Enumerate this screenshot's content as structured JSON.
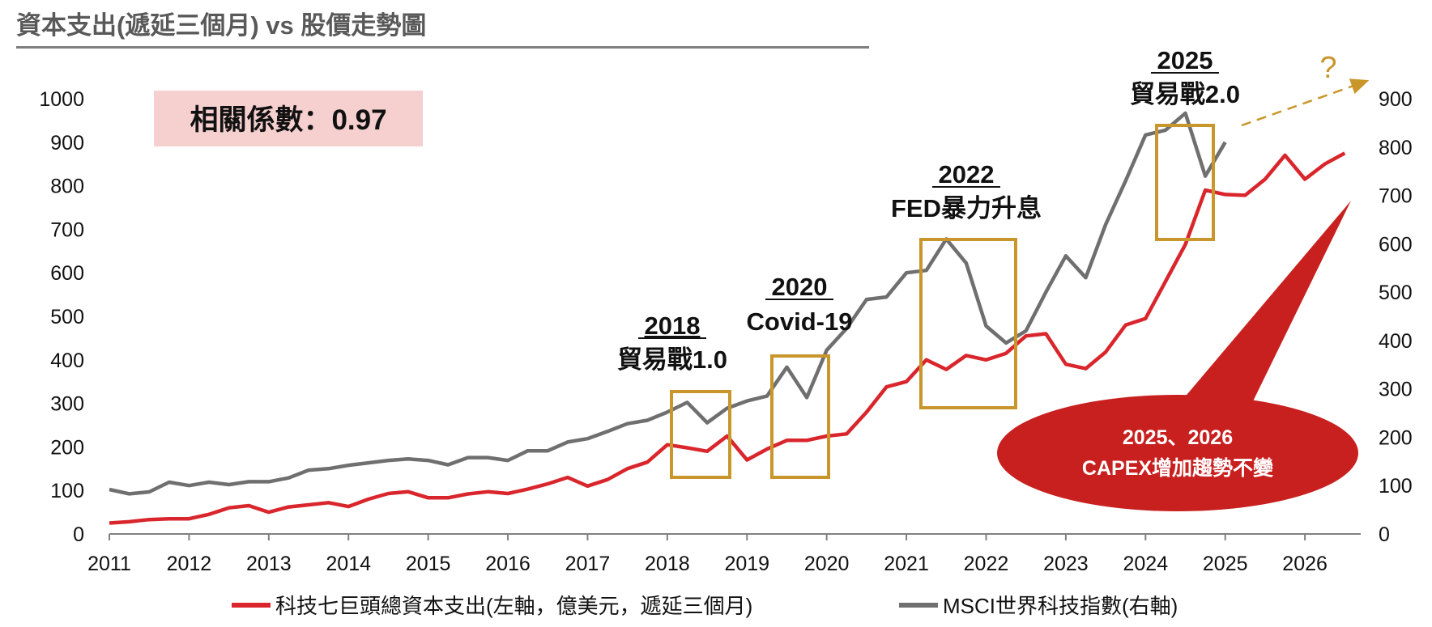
{
  "title": "資本支出(遞延三個月) vs 股價走勢圖",
  "correlation_label": "相關係數：0.97",
  "chart_data": {
    "type": "line",
    "x_ticks": [
      "2011",
      "2012",
      "2013",
      "2014",
      "2015",
      "2016",
      "2017",
      "2018",
      "2019",
      "2020",
      "2021",
      "2022",
      "2023",
      "2024",
      "2025",
      "2026"
    ],
    "left_axis": {
      "ticks": [
        "0",
        "100",
        "200",
        "300",
        "400",
        "500",
        "600",
        "700",
        "800",
        "900",
        "1000"
      ],
      "range": [
        0,
        1000
      ]
    },
    "right_axis": {
      "ticks": [
        "0",
        "100",
        "200",
        "300",
        "400",
        "500",
        "600",
        "700",
        "800",
        "900"
      ],
      "range": [
        0,
        900
      ]
    },
    "xlim": [
      2011.0,
      2026.7
    ],
    "series": [
      {
        "name": "科技七巨頭總資本支出(左軸，億美元，遞延三個月)",
        "axis": "left",
        "color": "#d9262c",
        "x": [
          2011.0,
          2011.25,
          2011.5,
          2011.75,
          2012.0,
          2012.25,
          2012.5,
          2012.75,
          2013.0,
          2013.25,
          2013.5,
          2013.75,
          2014.0,
          2014.25,
          2014.5,
          2014.75,
          2015.0,
          2015.25,
          2015.5,
          2015.75,
          2016.0,
          2016.25,
          2016.5,
          2016.75,
          2017.0,
          2017.25,
          2017.5,
          2017.75,
          2018.0,
          2018.25,
          2018.5,
          2018.75,
          2019.0,
          2019.25,
          2019.5,
          2019.75,
          2020.0,
          2020.25,
          2020.5,
          2020.75,
          2021.0,
          2021.25,
          2021.5,
          2021.75,
          2022.0,
          2022.25,
          2022.5,
          2022.75,
          2023.0,
          2023.25,
          2023.5,
          2023.75,
          2024.0,
          2024.25,
          2024.5,
          2024.75,
          2025.0,
          2025.25,
          2025.5,
          2025.75,
          2026.0,
          2026.25,
          2026.5
        ],
        "values": [
          25,
          28,
          33,
          35,
          35,
          45,
          60,
          65,
          50,
          62,
          67,
          72,
          63,
          80,
          93,
          97,
          83,
          83,
          92,
          97,
          93,
          103,
          115,
          130,
          110,
          125,
          150,
          165,
          205,
          198,
          190,
          225,
          170,
          195,
          215,
          215,
          225,
          230,
          280,
          338,
          350,
          400,
          378,
          410,
          400,
          415,
          455,
          460,
          390,
          380,
          418,
          480,
          495,
          580,
          665,
          790,
          780,
          778,
          815,
          870,
          815,
          850,
          875
        ]
      },
      {
        "name": "MSCI世界科技指數(右軸)",
        "axis": "right",
        "color": "#6f6f6f",
        "x": [
          2011.0,
          2011.25,
          2011.5,
          2011.75,
          2012.0,
          2012.25,
          2012.5,
          2012.75,
          2013.0,
          2013.25,
          2013.5,
          2013.75,
          2014.0,
          2014.25,
          2014.5,
          2014.75,
          2015.0,
          2015.25,
          2015.5,
          2015.75,
          2016.0,
          2016.25,
          2016.5,
          2016.75,
          2017.0,
          2017.25,
          2017.5,
          2017.75,
          2018.0,
          2018.25,
          2018.5,
          2018.75,
          2019.0,
          2019.25,
          2019.5,
          2019.75,
          2020.0,
          2020.25,
          2020.5,
          2020.75,
          2021.0,
          2021.25,
          2021.5,
          2021.75,
          2022.0,
          2022.25,
          2022.5,
          2022.75,
          2023.0,
          2023.25,
          2023.5,
          2023.75,
          2024.0,
          2024.25,
          2024.5,
          2024.75,
          2025.0
        ],
        "values": [
          92,
          83,
          87,
          107,
          100,
          107,
          102,
          108,
          108,
          116,
          132,
          135,
          142,
          147,
          152,
          155,
          152,
          143,
          158,
          158,
          152,
          172,
          172,
          190,
          197,
          212,
          228,
          235,
          252,
          272,
          230,
          260,
          275,
          285,
          345,
          282,
          380,
          425,
          485,
          490,
          540,
          545,
          610,
          560,
          430,
          395,
          420,
          500,
          575,
          530,
          640,
          730,
          825,
          835,
          870,
          740,
          810
        ]
      }
    ],
    "annotations": [
      {
        "year": "2018",
        "label": "貿易戰1.0"
      },
      {
        "year": "2020",
        "label": "Covid-19"
      },
      {
        "year": "2022",
        "label": "FED暴力升息"
      },
      {
        "year": "2025",
        "label": "貿易戰2.0"
      }
    ],
    "question_mark": "?",
    "callout": {
      "line1": "2025、2026",
      "line2": "CAPEX增加趨勢不變"
    },
    "legend_position": "bottom"
  },
  "colors": {
    "capex_red": "#d9262c",
    "msci_gray": "#6f6f6f",
    "box_gold": "#c8962a",
    "callout_red": "#c8201f",
    "corr_bg": "#f6cfcf"
  }
}
